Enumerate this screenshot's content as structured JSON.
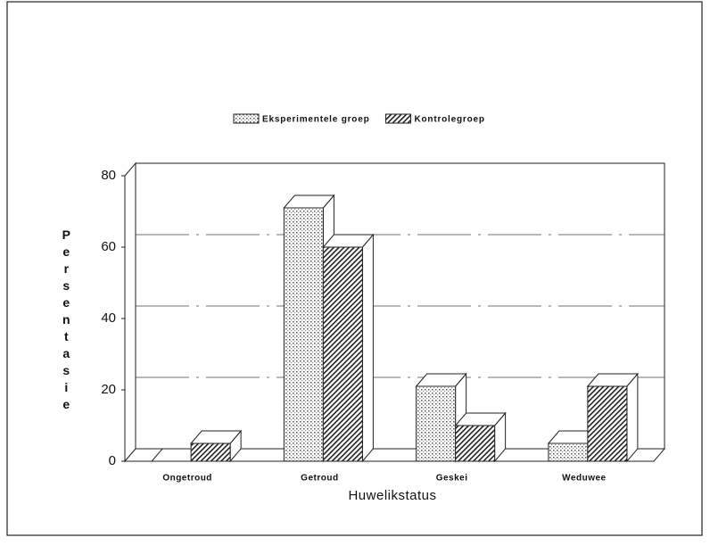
{
  "chart_data": {
    "type": "bar3d",
    "categories": [
      "Ongetroud",
      "Getroud",
      "Geskei",
      "Weduwee"
    ],
    "series": [
      {
        "name": "Eksperimentele groep",
        "color": "#777777",
        "values": [
          0,
          71,
          21,
          5
        ]
      },
      {
        "name": "Kontrolegroep",
        "color": "#222222",
        "values": [
          5,
          60,
          10,
          21
        ]
      }
    ],
    "xlabel": "Huwelikstatus",
    "ylabel": "Persentasie",
    "ylim": [
      0,
      80
    ],
    "yticks": [
      0,
      20,
      40,
      60,
      80
    ],
    "grid": true,
    "legend": "top"
  }
}
